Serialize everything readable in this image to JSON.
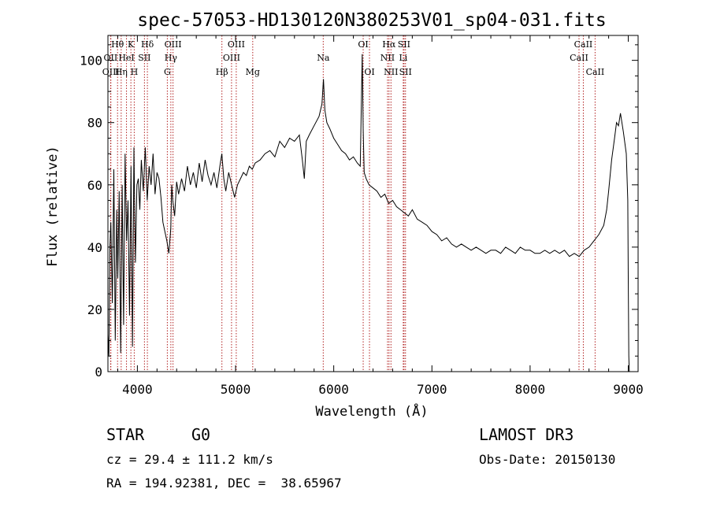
{
  "chart_data": {
    "type": "line",
    "title": "spec-57053-HD130120N380253V01_sp04-031.fits",
    "xlabel": "Wavelength (Å)",
    "ylabel": "Flux (relative)",
    "xlim": [
      3700,
      9100
    ],
    "ylim": [
      0,
      108
    ],
    "xticks": [
      4000,
      5000,
      6000,
      7000,
      8000,
      9000
    ],
    "yticks": [
      0,
      20,
      40,
      60,
      80,
      100
    ],
    "series": [
      {
        "name": "spectrum",
        "x": [
          3700,
          3710,
          3720,
          3730,
          3745,
          3760,
          3775,
          3790,
          3800,
          3815,
          3830,
          3845,
          3860,
          3875,
          3890,
          3905,
          3920,
          3935,
          3950,
          3965,
          3980,
          3995,
          4010,
          4025,
          4040,
          4060,
          4080,
          4100,
          4120,
          4140,
          4160,
          4180,
          4200,
          4220,
          4240,
          4260,
          4280,
          4300,
          4320,
          4340,
          4350,
          4360,
          4380,
          4400,
          4420,
          4450,
          4480,
          4510,
          4540,
          4570,
          4600,
          4630,
          4660,
          4690,
          4720,
          4750,
          4780,
          4810,
          4840,
          4860,
          4880,
          4900,
          4930,
          4960,
          4990,
          5020,
          5050,
          5080,
          5110,
          5140,
          5170,
          5200,
          5250,
          5300,
          5350,
          5400,
          5450,
          5500,
          5550,
          5600,
          5650,
          5680,
          5700,
          5720,
          5750,
          5800,
          5850,
          5880,
          5895,
          5910,
          5930,
          5960,
          6000,
          6040,
          6080,
          6120,
          6160,
          6200,
          6240,
          6270,
          6290,
          6300,
          6310,
          6330,
          6360,
          6400,
          6440,
          6480,
          6520,
          6560,
          6600,
          6640,
          6680,
          6720,
          6760,
          6800,
          6850,
          6900,
          6950,
          7000,
          7050,
          7100,
          7150,
          7200,
          7250,
          7300,
          7350,
          7400,
          7450,
          7500,
          7550,
          7600,
          7650,
          7700,
          7750,
          7800,
          7850,
          7900,
          7950,
          8000,
          8050,
          8100,
          8150,
          8200,
          8250,
          8300,
          8350,
          8400,
          8450,
          8500,
          8550,
          8600,
          8650,
          8700,
          8750,
          8780,
          8800,
          8830,
          8860,
          8880,
          8900,
          8920,
          8950,
          8980,
          8995,
          9000,
          9005,
          9010
        ],
        "y": [
          12,
          5,
          40,
          48,
          22,
          65,
          10,
          52,
          30,
          58,
          6,
          60,
          15,
          70,
          42,
          55,
          18,
          66,
          8,
          72,
          35,
          60,
          62,
          52,
          68,
          58,
          72,
          55,
          66,
          60,
          70,
          57,
          64,
          62,
          56,
          48,
          45,
          42,
          38,
          46,
          60,
          55,
          50,
          61,
          57,
          62,
          58,
          66,
          60,
          64,
          59,
          67,
          61,
          68,
          63,
          60,
          64,
          59,
          66,
          70,
          62,
          58,
          64,
          60,
          56,
          60,
          62,
          64,
          63,
          66,
          65,
          67,
          68,
          70,
          71,
          69,
          74,
          72,
          75,
          74,
          76,
          68,
          62,
          74,
          76,
          79,
          82,
          86,
          94,
          84,
          80,
          78,
          75,
          73,
          71,
          70,
          68,
          69,
          67,
          66,
          102,
          78,
          64,
          62,
          60,
          59,
          58,
          56,
          57,
          54,
          55,
          53,
          52,
          51,
          50,
          52,
          49,
          48,
          47,
          45,
          44,
          42,
          43,
          41,
          40,
          41,
          40,
          39,
          40,
          39,
          38,
          39,
          39,
          38,
          40,
          39,
          38,
          40,
          39,
          39,
          38,
          38,
          39,
          38,
          39,
          38,
          39,
          37,
          38,
          37,
          39,
          40,
          42,
          44,
          47,
          52,
          58,
          68,
          75,
          80,
          79,
          83,
          77,
          70,
          55,
          30,
          5,
          0
        ]
      }
    ],
    "line_labels": [
      {
        "name": "Hθ",
        "wavelength": 3798,
        "row": 1
      },
      {
        "name": "OII",
        "wavelength": 3727,
        "row": 2
      },
      {
        "name": "OIII",
        "wavelength": 3730,
        "row": 3
      },
      {
        "name": "Hη",
        "wavelength": 3835,
        "row": 3
      },
      {
        "name": "K",
        "wavelength": 3934,
        "row": 1
      },
      {
        "name": "HeI",
        "wavelength": 3889,
        "row": 2
      },
      {
        "name": "Hδ",
        "wavelength": 4102,
        "row": 1
      },
      {
        "name": "SII",
        "wavelength": 4072,
        "row": 2
      },
      {
        "name": "H",
        "wavelength": 3968,
        "row": 3
      },
      {
        "name": "OIII",
        "wavelength": 4363,
        "row": 1
      },
      {
        "name": "Hγ",
        "wavelength": 4341,
        "row": 2
      },
      {
        "name": "G",
        "wavelength": 4305,
        "row": 3
      },
      {
        "name": "OIII",
        "wavelength": 5007,
        "row": 1
      },
      {
        "name": "OIII",
        "wavelength": 4959,
        "row": 2
      },
      {
        "name": "Hβ",
        "wavelength": 4861,
        "row": 3
      },
      {
        "name": "Mg",
        "wavelength": 5175,
        "row": 3
      },
      {
        "name": "Na",
        "wavelength": 5893,
        "row": 2
      },
      {
        "name": "OI",
        "wavelength": 6300,
        "row": 1
      },
      {
        "name": "OI",
        "wavelength": 6364,
        "row": 3
      },
      {
        "name": "Hα",
        "wavelength": 6563,
        "row": 1
      },
      {
        "name": "NII",
        "wavelength": 6548,
        "row": 2
      },
      {
        "name": "NII",
        "wavelength": 6583,
        "row": 3
      },
      {
        "name": "SII",
        "wavelength": 6716,
        "row": 1
      },
      {
        "name": "Li",
        "wavelength": 6708,
        "row": 2
      },
      {
        "name": "SII",
        "wavelength": 6731,
        "row": 3
      },
      {
        "name": "CaII",
        "wavelength": 8542,
        "row": 1
      },
      {
        "name": "CaII",
        "wavelength": 8498,
        "row": 2
      },
      {
        "name": "CaII",
        "wavelength": 8662,
        "row": 3
      }
    ],
    "line_marker_wavelengths": [
      3727,
      3730,
      3798,
      3835,
      3889,
      3934,
      3968,
      4072,
      4102,
      4305,
      4341,
      4363,
      4861,
      4959,
      5007,
      5175,
      5893,
      6300,
      6364,
      6548,
      6563,
      6583,
      6708,
      6716,
      6731,
      8498,
      8542,
      8662
    ]
  },
  "info": {
    "object_class": "STAR",
    "subclass": "G0",
    "survey": "LAMOST DR3",
    "redshift": "cz = 29.4 ± 111.2 km/s",
    "obs_date": "Obs-Date: 20150130",
    "coords": "RA = 194.92381, DEC =  38.65967"
  }
}
